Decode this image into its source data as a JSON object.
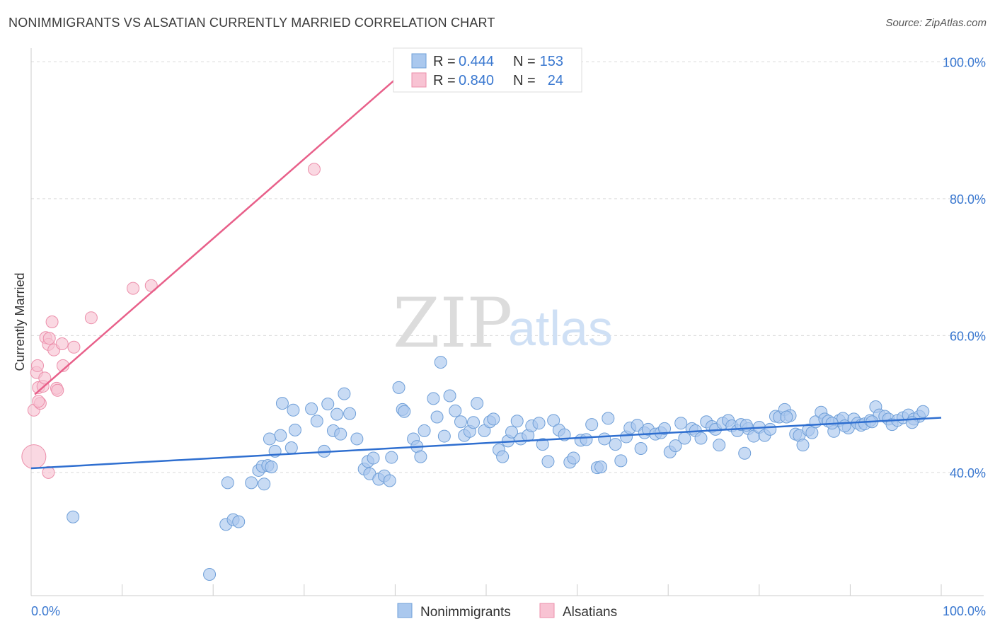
{
  "header": {
    "title": "NONIMMIGRANTS VS ALSATIAN CURRENTLY MARRIED CORRELATION CHART",
    "source": "Source: ZipAtlas.com"
  },
  "watermark": {
    "zip": "ZIP",
    "atlas": "atlas"
  },
  "legend": {
    "rows": [
      {
        "r_label": "R =",
        "r_value": "0.444",
        "n_label": "N =",
        "n_value": "153",
        "color": "#aac8ee"
      },
      {
        "r_label": "R =",
        "r_value": "0.840",
        "n_label": "N =",
        "n_value": "24",
        "color": "#f6b8cb"
      }
    ]
  },
  "colors": {
    "blue_fill": "#aac8ee",
    "blue_stroke": "#6f9fd8",
    "blue_line": "#2f6fd0",
    "pink_fill": "#f8c3d3",
    "pink_stroke": "#ec8fab",
    "pink_line": "#e8608a",
    "grid": "#d9d9d9",
    "tick_label": "#3a78d0"
  },
  "chart_data": {
    "type": "scatter",
    "title": "NONIMMIGRANTS VS ALSATIAN CURRENTLY MARRIED CORRELATION CHART",
    "xlabel": "",
    "ylabel": "Currently Married",
    "xlim": [
      0,
      100
    ],
    "ylim": [
      22,
      102
    ],
    "x_tick_labels": [
      {
        "value": 0,
        "label": "0.0%"
      },
      {
        "value": 100,
        "label": "100.0%"
      }
    ],
    "y_tick_labels": [
      {
        "value": 40,
        "label": "40.0%"
      },
      {
        "value": 60,
        "label": "60.0%"
      },
      {
        "value": 80,
        "label": "80.0%"
      },
      {
        "value": 100,
        "label": "100.0%"
      }
    ],
    "grid": "horizontal dashed",
    "legend_placement": "bottom-center",
    "series": [
      {
        "name": "Nonimmigrants",
        "color": "#aac8ee",
        "trendline": {
          "x": [
            0,
            100
          ],
          "y": [
            40.6,
            48.0
          ]
        },
        "points": [
          [
            4.6,
            33.5
          ],
          [
            19.6,
            25.1
          ],
          [
            21.4,
            32.4
          ],
          [
            22.2,
            33.1
          ],
          [
            22.8,
            32.8
          ],
          [
            21.6,
            38.5
          ],
          [
            24.2,
            38.5
          ],
          [
            25.6,
            38.3
          ],
          [
            25.0,
            40.3
          ],
          [
            25.4,
            40.9
          ],
          [
            26.0,
            41.0
          ],
          [
            26.4,
            40.8
          ],
          [
            26.8,
            43.1
          ],
          [
            27.4,
            45.4
          ],
          [
            26.2,
            44.9
          ],
          [
            29.0,
            46.2
          ],
          [
            28.6,
            43.6
          ],
          [
            27.6,
            50.1
          ],
          [
            28.8,
            49.1
          ],
          [
            30.8,
            49.3
          ],
          [
            32.6,
            50.0
          ],
          [
            31.4,
            47.5
          ],
          [
            32.2,
            43.1
          ],
          [
            34.4,
            51.5
          ],
          [
            33.6,
            48.5
          ],
          [
            35.0,
            48.6
          ],
          [
            33.2,
            46.1
          ],
          [
            34.0,
            45.6
          ],
          [
            35.8,
            44.9
          ],
          [
            36.6,
            40.5
          ],
          [
            37.0,
            41.6
          ],
          [
            37.6,
            42.1
          ],
          [
            37.2,
            39.8
          ],
          [
            38.2,
            39.0
          ],
          [
            38.8,
            39.5
          ],
          [
            39.4,
            38.8
          ],
          [
            39.6,
            42.2
          ],
          [
            40.4,
            52.4
          ],
          [
            40.8,
            49.2
          ],
          [
            41.0,
            48.9
          ],
          [
            42.0,
            44.9
          ],
          [
            42.4,
            43.8
          ],
          [
            42.8,
            42.3
          ],
          [
            43.2,
            46.1
          ],
          [
            44.2,
            50.8
          ],
          [
            44.6,
            48.1
          ],
          [
            45.4,
            45.3
          ],
          [
            45.0,
            56.1
          ],
          [
            46.0,
            51.2
          ],
          [
            46.6,
            49.0
          ],
          [
            47.2,
            47.4
          ],
          [
            47.6,
            45.4
          ],
          [
            48.2,
            46.0
          ],
          [
            48.6,
            47.3
          ],
          [
            49.0,
            50.1
          ],
          [
            49.8,
            46.1
          ],
          [
            50.4,
            47.4
          ],
          [
            50.8,
            47.8
          ],
          [
            51.4,
            43.3
          ],
          [
            51.8,
            42.3
          ],
          [
            52.4,
            44.6
          ],
          [
            52.8,
            45.9
          ],
          [
            53.4,
            47.5
          ],
          [
            53.8,
            44.9
          ],
          [
            54.6,
            45.4
          ],
          [
            55.0,
            46.8
          ],
          [
            55.8,
            47.2
          ],
          [
            56.2,
            44.1
          ],
          [
            56.8,
            41.6
          ],
          [
            57.4,
            47.6
          ],
          [
            58.0,
            46.2
          ],
          [
            58.6,
            45.5
          ],
          [
            59.2,
            41.5
          ],
          [
            59.6,
            42.1
          ],
          [
            60.4,
            44.7
          ],
          [
            61.0,
            44.8
          ],
          [
            61.6,
            47.0
          ],
          [
            62.2,
            40.7
          ],
          [
            62.6,
            40.8
          ],
          [
            63.0,
            44.9
          ],
          [
            63.4,
            47.9
          ],
          [
            64.2,
            44.1
          ],
          [
            64.8,
            41.7
          ],
          [
            65.4,
            45.2
          ],
          [
            65.8,
            46.5
          ],
          [
            66.6,
            46.9
          ],
          [
            67.0,
            43.5
          ],
          [
            67.4,
            45.8
          ],
          [
            67.8,
            46.3
          ],
          [
            68.6,
            45.6
          ],
          [
            69.2,
            45.8
          ],
          [
            69.6,
            46.4
          ],
          [
            70.2,
            43.0
          ],
          [
            70.8,
            43.9
          ],
          [
            71.4,
            47.2
          ],
          [
            71.8,
            45.0
          ],
          [
            72.6,
            46.4
          ],
          [
            73.0,
            46.1
          ],
          [
            73.6,
            45.0
          ],
          [
            74.2,
            47.4
          ],
          [
            74.8,
            46.7
          ],
          [
            75.2,
            46.3
          ],
          [
            75.6,
            44.0
          ],
          [
            76.0,
            47.2
          ],
          [
            76.6,
            47.6
          ],
          [
            77.0,
            46.8
          ],
          [
            77.6,
            46.1
          ],
          [
            78.0,
            47.0
          ],
          [
            78.4,
            42.8
          ],
          [
            78.8,
            46.4
          ],
          [
            79.4,
            45.3
          ],
          [
            80.0,
            46.6
          ],
          [
            80.6,
            45.4
          ],
          [
            81.2,
            46.3
          ],
          [
            81.8,
            48.2
          ],
          [
            82.2,
            48.1
          ],
          [
            82.8,
            49.2
          ],
          [
            83.4,
            48.3
          ],
          [
            84.0,
            45.6
          ],
          [
            84.4,
            45.4
          ],
          [
            84.8,
            44.0
          ],
          [
            85.4,
            46.2
          ],
          [
            85.8,
            45.8
          ],
          [
            86.2,
            47.4
          ],
          [
            86.8,
            48.8
          ],
          [
            87.2,
            47.8
          ],
          [
            87.6,
            47.5
          ],
          [
            88.2,
            46.0
          ],
          [
            88.8,
            47.6
          ],
          [
            89.2,
            47.9
          ],
          [
            89.8,
            46.5
          ],
          [
            90.4,
            47.8
          ],
          [
            90.8,
            47.2
          ],
          [
            91.2,
            46.9
          ],
          [
            91.6,
            47.1
          ],
          [
            92.2,
            47.6
          ],
          [
            92.8,
            49.6
          ],
          [
            93.2,
            48.4
          ],
          [
            93.8,
            48.2
          ],
          [
            94.2,
            47.8
          ],
          [
            94.6,
            47.0
          ],
          [
            95.2,
            47.6
          ],
          [
            95.8,
            48.0
          ],
          [
            96.4,
            48.4
          ],
          [
            97.0,
            47.8
          ],
          [
            97.6,
            48.2
          ],
          [
            98.0,
            48.9
          ],
          [
            96.8,
            47.3
          ],
          [
            92.4,
            47.4
          ],
          [
            89.4,
            46.8
          ],
          [
            88.0,
            47.2
          ],
          [
            83.0,
            48.1
          ],
          [
            78.6,
            46.9
          ]
        ]
      },
      {
        "name": "Alsatians",
        "color": "#f8c3d3",
        "trendline": {
          "x": [
            0.4,
            40.5
          ],
          "y": [
            51.4,
            98.0
          ]
        },
        "points": [
          [
            0.3,
            42.3
          ],
          [
            0.3,
            49.1
          ],
          [
            0.8,
            52.4
          ],
          [
            0.6,
            54.6
          ],
          [
            0.7,
            55.6
          ],
          [
            1.0,
            50.1
          ],
          [
            1.3,
            52.6
          ],
          [
            1.5,
            53.8
          ],
          [
            1.6,
            59.7
          ],
          [
            1.9,
            58.7
          ],
          [
            2.0,
            59.6
          ],
          [
            2.3,
            62.0
          ],
          [
            2.5,
            57.9
          ],
          [
            2.8,
            52.3
          ],
          [
            2.9,
            52.0
          ],
          [
            3.4,
            58.8
          ],
          [
            3.5,
            55.6
          ],
          [
            4.7,
            58.3
          ],
          [
            6.6,
            62.6
          ],
          [
            11.2,
            66.9
          ],
          [
            13.2,
            67.3
          ],
          [
            31.1,
            84.3
          ],
          [
            1.9,
            40.0
          ],
          [
            0.8,
            50.4
          ]
        ]
      }
    ]
  },
  "bottom_legend": {
    "items": [
      {
        "label": "Nonimmigrants",
        "color": "#aac8ee"
      },
      {
        "label": "Alsatians",
        "color": "#f8c3d3"
      }
    ]
  }
}
